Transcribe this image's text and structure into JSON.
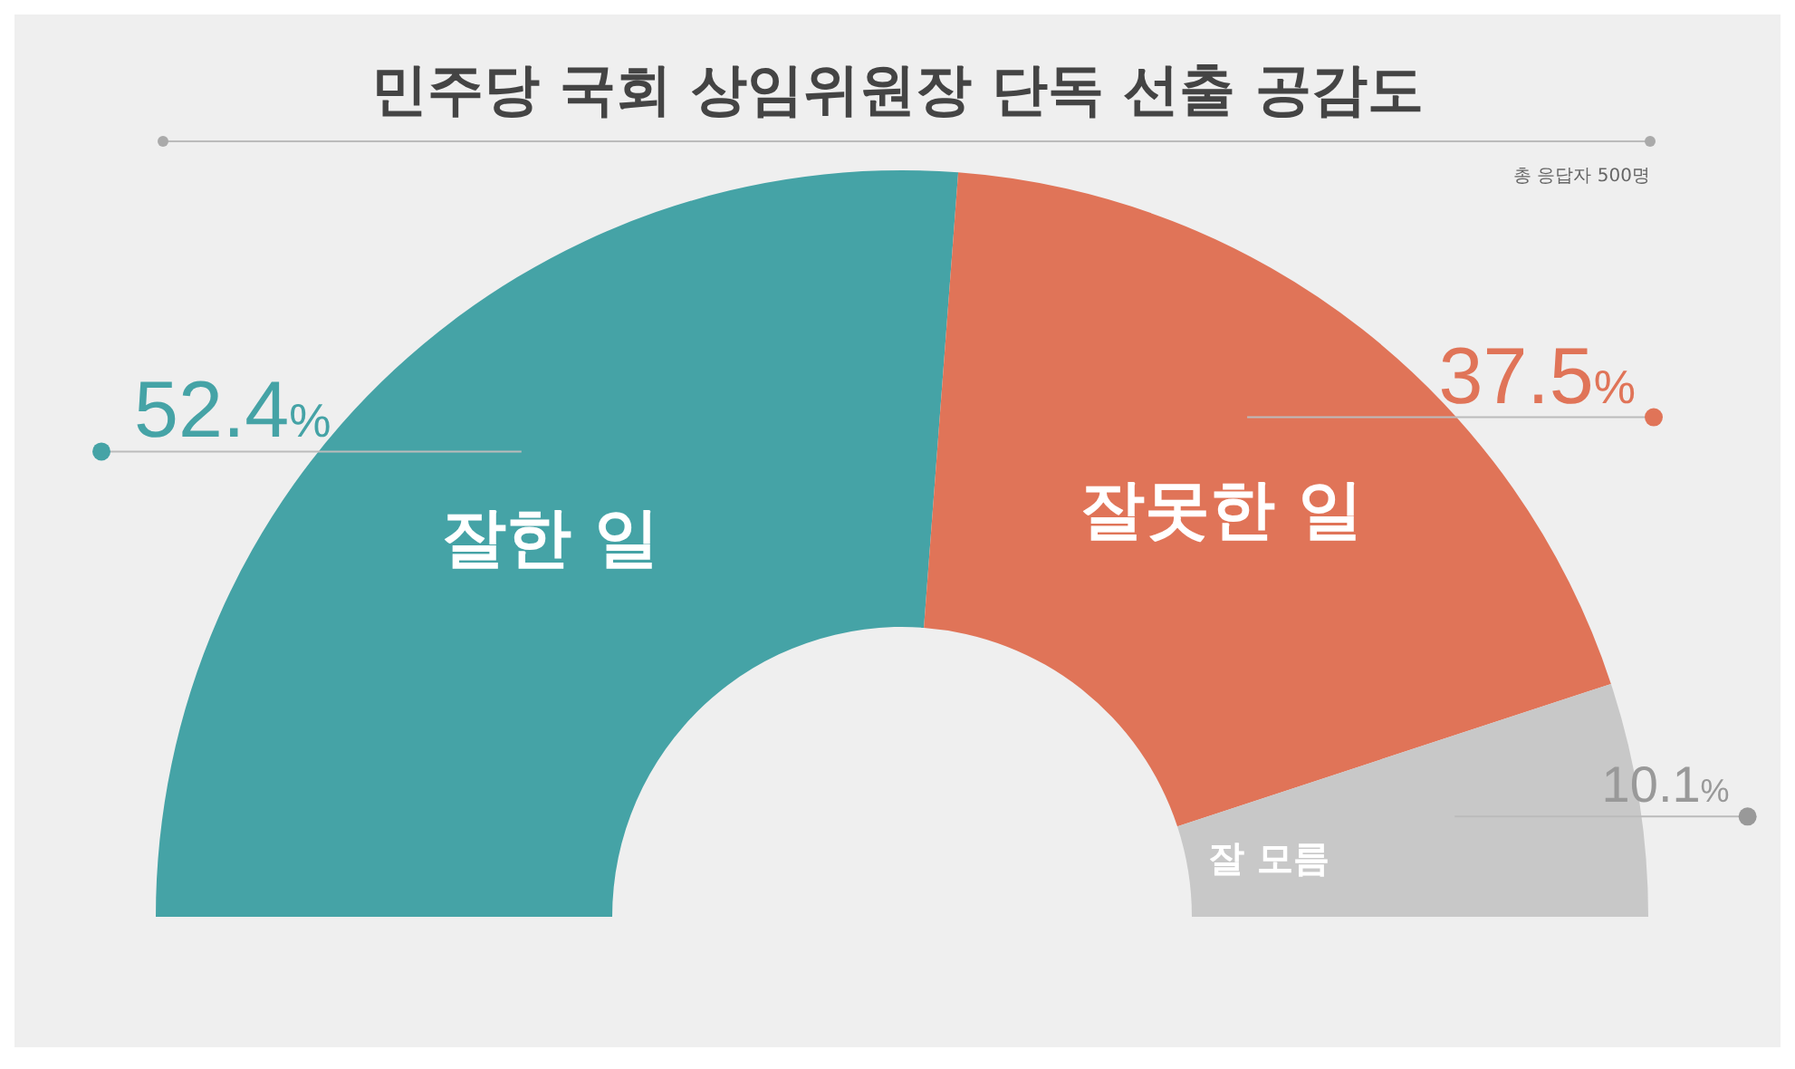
{
  "chart_data": {
    "type": "donut",
    "title": "민주당 국회 상임위원장 단독 선출 공감도",
    "subtitle": "총 응답자 500명",
    "categories": [
      "잘한 일",
      "잘못한 일",
      "잘 모름"
    ],
    "values": [
      52.4,
      37.5,
      10.1
    ],
    "colors": [
      "#45a3a6",
      "#e07458",
      "#c8c8c8"
    ],
    "value_labels": [
      "52.4%",
      "37.5%",
      "10.1%"
    ]
  }
}
